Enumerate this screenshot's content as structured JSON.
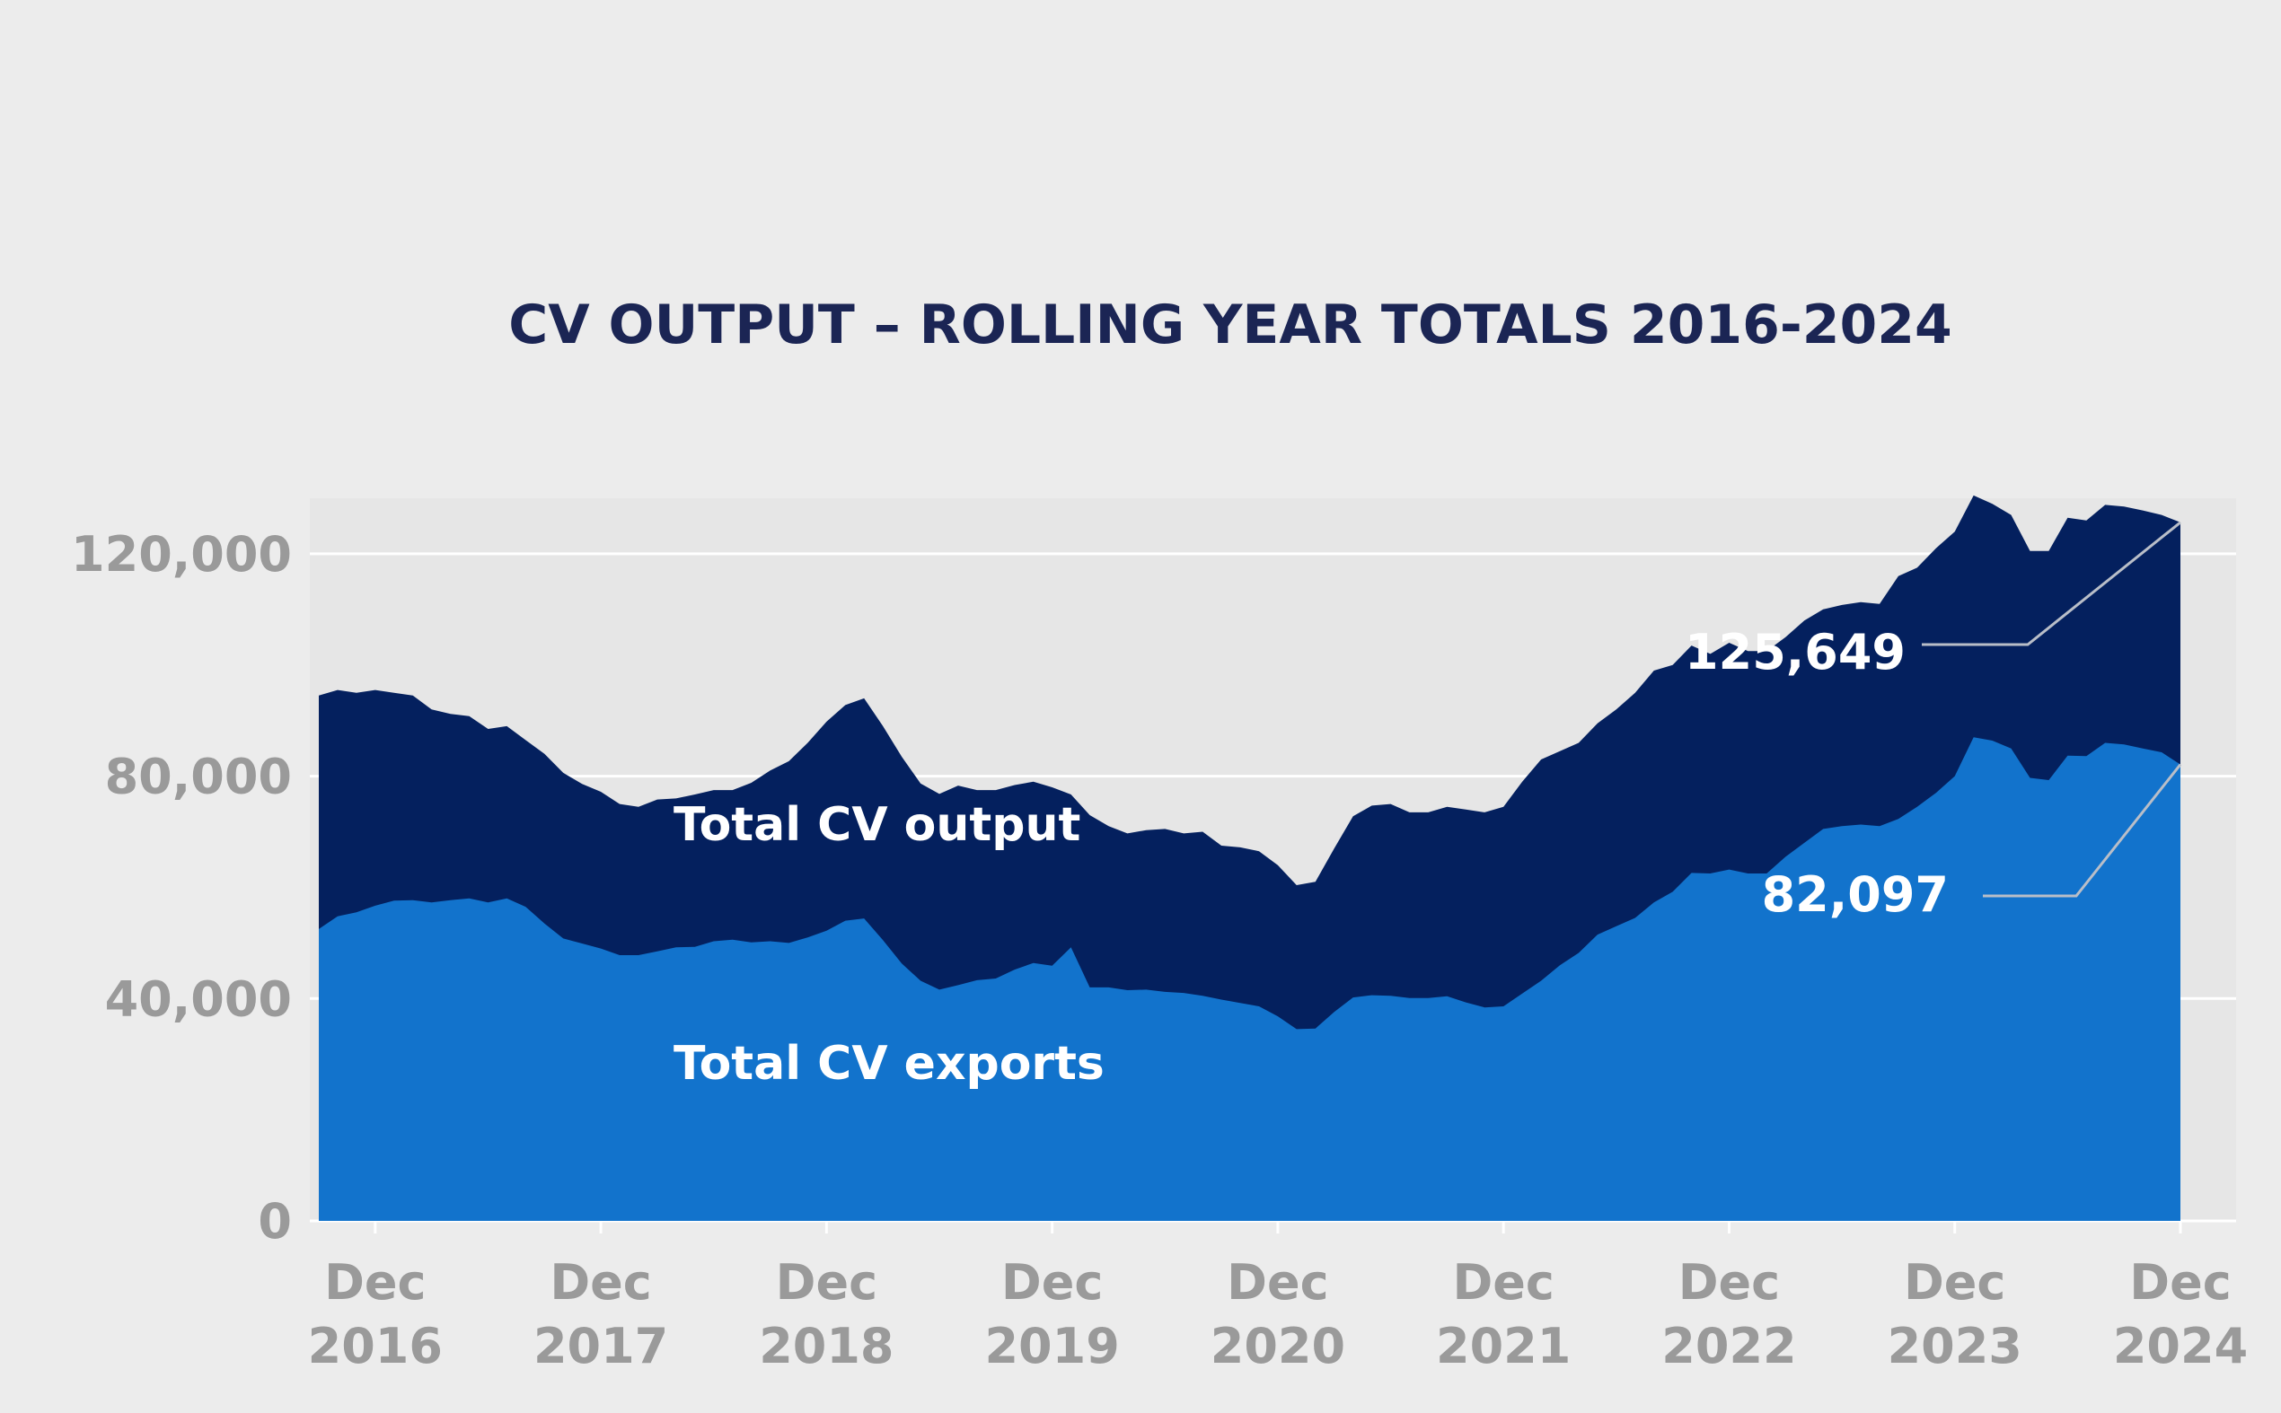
{
  "colors": {
    "background": "#ececec",
    "plot_background": "#e6e6e6",
    "gridline": "#ffffff",
    "output_area": "#04205e",
    "exports_area": "#1273cc",
    "title": "#1b2554",
    "axis_text": "#9a9a9a",
    "label_text": "#ffffff",
    "leader_line": "#b9bec8"
  },
  "chart_data": {
    "type": "area",
    "title": "CV OUTPUT – ROLLING YEAR TOTALS 2016-2024",
    "xlabel": "",
    "ylabel": "",
    "ylim": [
      0,
      130000
    ],
    "yticks": [
      {
        "value": 0,
        "label": "0"
      },
      {
        "value": 40000,
        "label": "40,000"
      },
      {
        "value": 80000,
        "label": "80,000"
      },
      {
        "value": 120000,
        "label": "120,000"
      }
    ],
    "xticks": [
      {
        "date": "2016-12",
        "line1": "Dec",
        "line2": "2016"
      },
      {
        "date": "2017-12",
        "line1": "Dec",
        "line2": "2017"
      },
      {
        "date": "2018-12",
        "line1": "Dec",
        "line2": "2018"
      },
      {
        "date": "2019-12",
        "line1": "Dec",
        "line2": "2019"
      },
      {
        "date": "2020-12",
        "line1": "Dec",
        "line2": "2020"
      },
      {
        "date": "2021-12",
        "line1": "Dec",
        "line2": "2021"
      },
      {
        "date": "2022-12",
        "line1": "Dec",
        "line2": "2022"
      },
      {
        "date": "2023-12",
        "line1": "Dec",
        "line2": "2023"
      },
      {
        "date": "2024-12",
        "line1": "Dec",
        "line2": "2024"
      }
    ],
    "grid": true,
    "months": [
      "2016-09",
      "2016-10",
      "2016-11",
      "2016-12",
      "2017-01",
      "2017-02",
      "2017-03",
      "2017-04",
      "2017-05",
      "2017-06",
      "2017-07",
      "2017-08",
      "2017-09",
      "2017-10",
      "2017-11",
      "2017-12",
      "2018-01",
      "2018-02",
      "2018-03",
      "2018-04",
      "2018-05",
      "2018-06",
      "2018-07",
      "2018-08",
      "2018-09",
      "2018-10",
      "2018-11",
      "2018-12",
      "2019-01",
      "2019-02",
      "2019-03",
      "2019-04",
      "2019-05",
      "2019-06",
      "2019-07",
      "2019-08",
      "2019-09",
      "2019-10",
      "2019-11",
      "2019-12",
      "2020-01",
      "2020-02",
      "2020-03",
      "2020-04",
      "2020-05",
      "2020-06",
      "2020-07",
      "2020-08",
      "2020-09",
      "2020-10",
      "2020-11",
      "2020-12",
      "2021-01",
      "2021-02",
      "2021-03",
      "2021-04",
      "2021-05",
      "2021-06",
      "2021-07",
      "2021-08",
      "2021-09",
      "2021-10",
      "2021-11",
      "2021-12",
      "2022-01",
      "2022-02",
      "2022-03",
      "2022-04",
      "2022-05",
      "2022-06",
      "2022-07",
      "2022-08",
      "2022-09",
      "2022-10",
      "2022-11",
      "2022-12",
      "2023-01",
      "2023-02",
      "2023-03",
      "2023-04",
      "2023-05",
      "2023-06",
      "2023-07",
      "2023-08",
      "2023-09",
      "2023-10",
      "2023-11",
      "2023-12",
      "2024-01",
      "2024-02",
      "2024-03",
      "2024-04",
      "2024-05",
      "2024-06",
      "2024-07",
      "2024-08",
      "2024-09",
      "2024-10",
      "2024-11",
      "2024-12"
    ],
    "series": [
      {
        "name": "Total CV output",
        "values": [
          94500,
          95500,
          95000,
          95500,
          95000,
          94500,
          92000,
          91200,
          90800,
          88500,
          89000,
          86500,
          84000,
          80600,
          78600,
          77200,
          75000,
          74500,
          75800,
          76000,
          76700,
          77500,
          77500,
          78800,
          81000,
          82700,
          86000,
          89800,
          92800,
          94000,
          89000,
          83500,
          78700,
          76800,
          78300,
          77500,
          77500,
          78400,
          79000,
          78000,
          76700,
          73000,
          71000,
          69700,
          70300,
          70500,
          69700,
          70000,
          67500,
          67200,
          66500,
          64000,
          60400,
          61000,
          67000,
          72800,
          74700,
          75000,
          73500,
          73500,
          74500,
          74000,
          73500,
          74500,
          79000,
          83000,
          84500,
          86000,
          89500,
          92000,
          95000,
          99000,
          100000,
          103500,
          102000,
          104000,
          102500,
          102500,
          105000,
          108000,
          110000,
          110800,
          111300,
          111000,
          116000,
          117500,
          121000,
          124000,
          130500,
          129000,
          127000,
          120500,
          120500,
          126500,
          126000,
          128800,
          128500,
          127800,
          127000,
          125649
        ]
      },
      {
        "name": "Total CV exports",
        "values": [
          52500,
          54800,
          55500,
          56700,
          57600,
          57700,
          57300,
          57700,
          58000,
          57300,
          58000,
          56500,
          53500,
          50800,
          49900,
          49000,
          47800,
          47800,
          48500,
          49200,
          49300,
          50300,
          50600,
          50100,
          50300,
          50000,
          51000,
          52200,
          54000,
          54400,
          50500,
          46300,
          43200,
          41600,
          42400,
          43300,
          43600,
          45200,
          46400,
          45900,
          49200,
          42000,
          42000,
          41500,
          41600,
          41200,
          41000,
          40500,
          39800,
          39200,
          38600,
          36800,
          34500,
          34600,
          37600,
          40200,
          40600,
          40500,
          40100,
          40100,
          40400,
          39300,
          38400,
          38600,
          40900,
          43200,
          46000,
          48200,
          51500,
          53000,
          54500,
          57300,
          59200,
          62600,
          62500,
          63200,
          62500,
          62500,
          65500,
          68000,
          70500,
          71000,
          71300,
          71000,
          72300,
          74500,
          77000,
          80000,
          87000,
          86400,
          85000,
          79700,
          79300,
          83700,
          83600,
          86000,
          85700,
          85000,
          84300,
          82097
        ]
      }
    ],
    "series_labels": [
      {
        "series": "Total CV output",
        "text": "Total CV output"
      },
      {
        "series": "Total CV exports",
        "text": "Total CV exports"
      }
    ],
    "annotations": [
      {
        "text": "125,649",
        "series": "Total CV output",
        "date": "2024-12",
        "value": 125649
      },
      {
        "text": "82,097",
        "series": "Total CV exports",
        "date": "2024-12",
        "value": 82097
      }
    ]
  }
}
